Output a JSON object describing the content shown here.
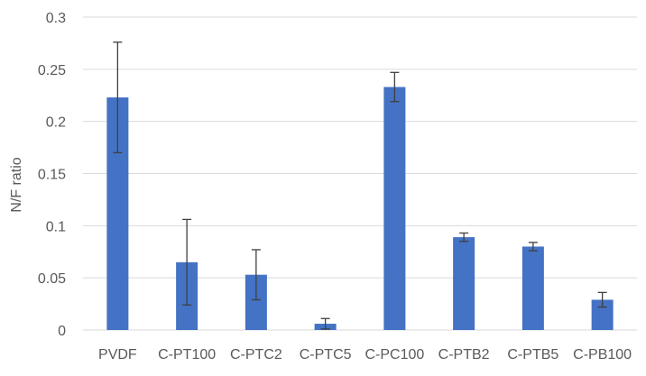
{
  "chart_data": {
    "type": "bar",
    "title": "",
    "xlabel": "",
    "ylabel": "N/F ratio",
    "ylim": [
      0,
      0.3
    ],
    "yticks": [
      "0",
      "0.05",
      "0.1",
      "0.15",
      "0.2",
      "0.25",
      "0.3"
    ],
    "grid": true,
    "legend": "none",
    "categories": [
      "PVDF",
      "C-PT100",
      "C-PTC2",
      "C-PTC5",
      "C-PC100",
      "C-PTB2",
      "C-PTB5",
      "C-PB100"
    ],
    "values": [
      0.223,
      0.065,
      0.053,
      0.006,
      0.233,
      0.089,
      0.08,
      0.029
    ],
    "error": [
      0.053,
      0.041,
      0.024,
      0.005,
      0.014,
      0.004,
      0.004,
      0.007
    ],
    "colors": {
      "bar": "#4472C4",
      "grid": "#D9D9D9",
      "error_bar": "#404040"
    }
  }
}
